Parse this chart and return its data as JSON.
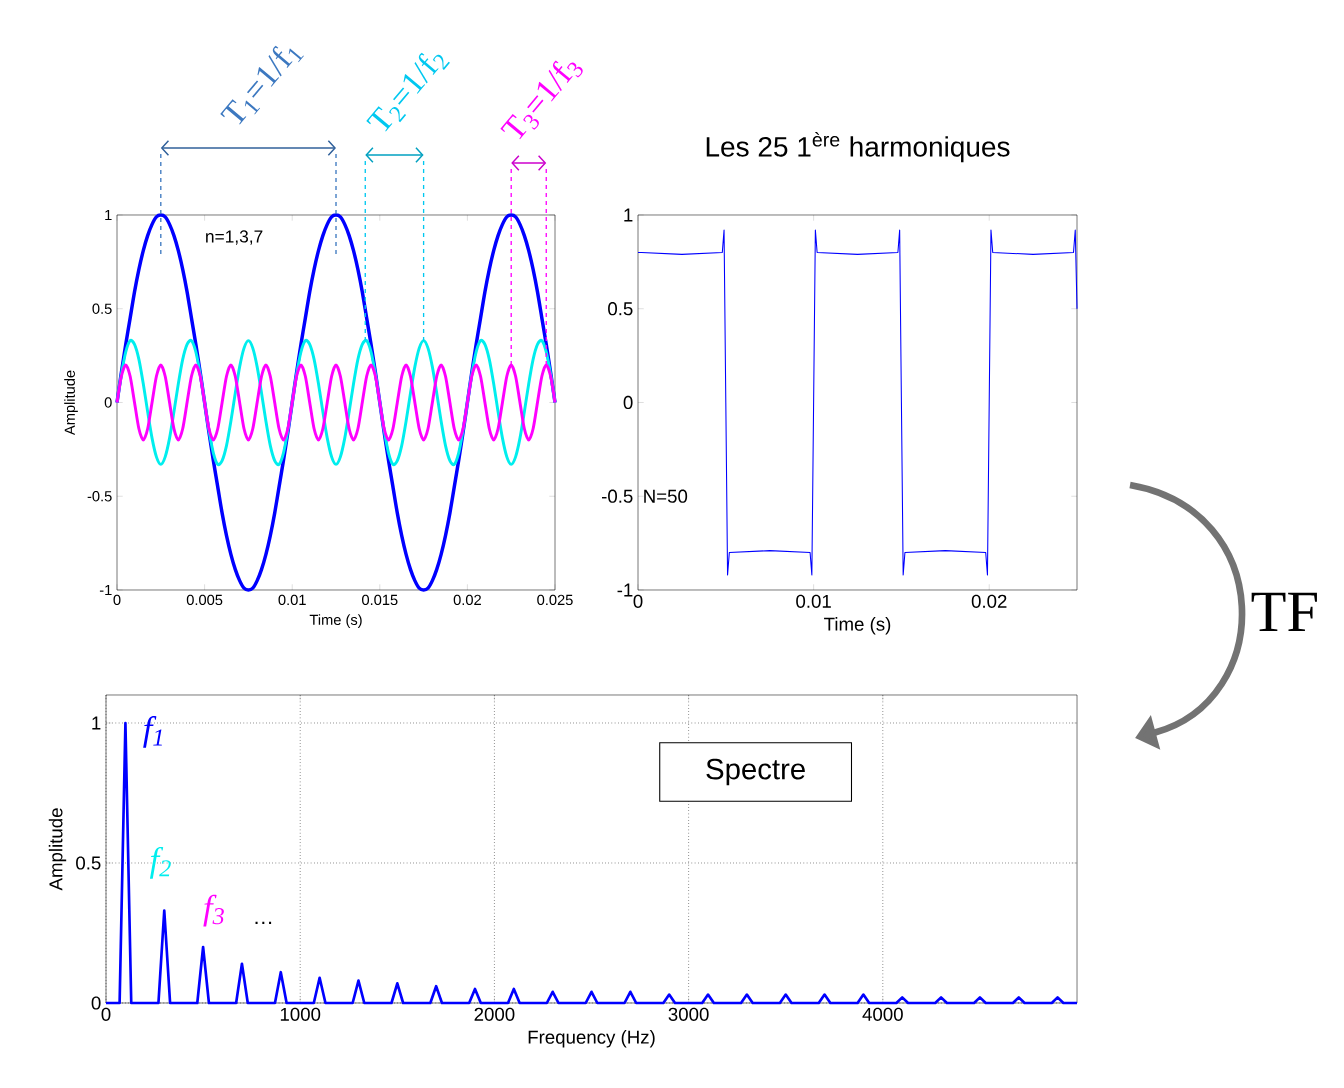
{
  "chart_data": [
    {
      "type": "line",
      "xlabel": "Time (s)",
      "ylabel": "Amplitude",
      "x": [
        0,
        0.00025,
        0.0005,
        0.00075,
        0.001,
        0.00125,
        0.0015,
        0.00175,
        0.002,
        0.00225,
        0.0025,
        0.00275,
        0.003,
        0.00325,
        0.0035,
        0.00375,
        0.004,
        0.00425,
        0.0045,
        0.00475,
        0.005,
        0.00525,
        0.0055,
        0.00575,
        0.006,
        0.00625,
        0.0065,
        0.00675,
        0.007,
        0.00725,
        0.0075,
        0.00775,
        0.008,
        0.00825,
        0.0085,
        0.00875,
        0.009,
        0.00925,
        0.0095,
        0.00975,
        0.01,
        0.01025,
        0.0105,
        0.01075,
        0.011,
        0.01125,
        0.0115,
        0.01175,
        0.012,
        0.01225,
        0.0125,
        0.01275,
        0.013,
        0.01325,
        0.0135,
        0.01375,
        0.014,
        0.01425,
        0.0145,
        0.01475,
        0.015,
        0.01525,
        0.0155,
        0.01575,
        0.016,
        0.01625,
        0.0165,
        0.01675,
        0.017,
        0.01725,
        0.0175,
        0.01775,
        0.018,
        0.01825,
        0.0185,
        0.01875,
        0.019,
        0.01925,
        0.0195,
        0.01975,
        0.02,
        0.02025,
        0.0205,
        0.02075,
        0.021,
        0.02125,
        0.0215,
        0.02175,
        0.022,
        0.02225,
        0.0225,
        0.02275,
        0.023,
        0.02325,
        0.0235,
        0.02375,
        0.024,
        0.02425,
        0.0245,
        0.02475,
        0.025
      ],
      "series": [
        {
          "color": "#0000ff",
          "values": [
            0,
            0.16,
            0.31,
            0.45,
            0.59,
            0.71,
            0.81,
            0.89,
            0.95,
            0.99,
            1,
            0.99,
            0.95,
            0.89,
            0.81,
            0.71,
            0.59,
            0.45,
            0.31,
            0.16,
            0,
            -0.16,
            -0.31,
            -0.45,
            -0.59,
            -0.71,
            -0.81,
            -0.89,
            -0.95,
            -0.99,
            -1,
            -0.99,
            -0.95,
            -0.89,
            -0.81,
            -0.71,
            -0.59,
            -0.45,
            -0.31,
            -0.16,
            0,
            0.16,
            0.31,
            0.45,
            0.59,
            0.71,
            0.81,
            0.89,
            0.95,
            0.99,
            1,
            0.99,
            0.95,
            0.89,
            0.81,
            0.71,
            0.59,
            0.45,
            0.31,
            0.16,
            0,
            -0.16,
            -0.31,
            -0.45,
            -0.59,
            -0.71,
            -0.81,
            -0.89,
            -0.95,
            -0.99,
            -1,
            -0.99,
            -0.95,
            -0.89,
            -0.81,
            -0.71,
            -0.59,
            -0.45,
            -0.31,
            -0.16,
            0,
            0.16,
            0.31,
            0.45,
            0.59,
            0.71,
            0.81,
            0.89,
            0.95,
            0.99,
            1,
            0.99,
            0.95,
            0.89,
            0.81,
            0.71,
            0.59,
            0.45,
            0.31,
            0.16,
            0
          ]
        },
        {
          "color": "#00eeee",
          "values": [
            0,
            0.15,
            0.27,
            0.33,
            0.31,
            0.23,
            0.1,
            -0.05,
            -0.19,
            -0.29,
            -0.33,
            -0.29,
            -0.19,
            -0.05,
            0.1,
            0.23,
            0.31,
            0.33,
            0.27,
            0.15,
            0,
            -0.15,
            -0.27,
            -0.33,
            -0.31,
            -0.23,
            -0.1,
            0.05,
            0.19,
            0.29,
            0.33,
            0.29,
            0.19,
            0.05,
            -0.1,
            -0.23,
            -0.31,
            -0.33,
            -0.27,
            -0.15,
            0,
            0.15,
            0.27,
            0.33,
            0.31,
            0.23,
            0.1,
            -0.05,
            -0.19,
            -0.29,
            -0.33,
            -0.29,
            -0.19,
            -0.05,
            0.1,
            0.23,
            0.31,
            0.33,
            0.27,
            0.15,
            0,
            -0.15,
            -0.27,
            -0.33,
            -0.31,
            -0.23,
            -0.1,
            0.05,
            0.19,
            0.29,
            0.33,
            0.29,
            0.19,
            0.05,
            -0.1,
            -0.23,
            -0.31,
            -0.33,
            -0.27,
            -0.15,
            0,
            0.15,
            0.27,
            0.33,
            0.31,
            0.23,
            0.1,
            -0.05,
            -0.19,
            -0.29,
            -0.33,
            -0.29,
            -0.19,
            -0.05,
            0.1,
            0.23,
            0.31,
            0.33,
            0.27,
            0.15,
            0
          ]
        },
        {
          "color": "#ff00ff",
          "values": [
            0,
            0.14,
            0.2,
            0.14,
            0,
            -0.14,
            -0.2,
            -0.14,
            0,
            0.14,
            0.2,
            0.14,
            0,
            -0.14,
            -0.2,
            -0.14,
            0,
            0.14,
            0.2,
            0.14,
            0,
            -0.14,
            -0.2,
            -0.14,
            0,
            0.14,
            0.2,
            0.14,
            0,
            -0.14,
            -0.2,
            -0.14,
            0,
            0.14,
            0.2,
            0.14,
            0,
            -0.14,
            -0.2,
            -0.14,
            0,
            0.14,
            0.2,
            0.14,
            0,
            -0.14,
            -0.2,
            -0.14,
            0,
            0.14,
            0.2,
            0.14,
            0,
            -0.14,
            -0.2,
            -0.14,
            0,
            0.14,
            0.2,
            0.14,
            0,
            -0.14,
            -0.2,
            -0.14,
            0,
            0.14,
            0.2,
            0.14,
            0,
            -0.14,
            -0.2,
            -0.14,
            0,
            0.14,
            0.2,
            0.14,
            0,
            -0.14,
            -0.2,
            -0.14,
            0,
            0.14,
            0.2,
            0.14,
            0,
            -0.14,
            -0.2,
            -0.14,
            0,
            0.14,
            0.2,
            0.14,
            0,
            -0.14,
            -0.2,
            -0.14,
            0,
            0.14,
            0.2,
            0.14,
            0
          ]
        }
      ],
      "xlim": [
        0,
        0.025
      ],
      "ylim": [
        -1,
        1
      ],
      "xticks": [
        0,
        0.005,
        0.01,
        0.015,
        0.02,
        0.025
      ],
      "yticks": [
        -1,
        -0.5,
        0,
        0.5,
        1
      ],
      "ref_lines": [
        {
          "axis": "x",
          "value": 0.0025,
          "color": "#3c78c0",
          "line_style": "dashed"
        },
        {
          "axis": "x",
          "value": 0.0125,
          "color": "#3c78c0",
          "line_style": "dashed"
        },
        {
          "axis": "x",
          "value": 0.01417,
          "color": "#00c8f0",
          "line_style": "dashed"
        },
        {
          "axis": "x",
          "value": 0.0175,
          "color": "#00c8f0",
          "line_style": "dashed"
        },
        {
          "axis": "x",
          "value": 0.0225,
          "color": "#ff00ff",
          "line_style": "dashed"
        },
        {
          "axis": "x",
          "value": 0.0245,
          "color": "#ff00ff",
          "line_style": "dashed"
        }
      ],
      "annotations": [
        "n=1,3,7",
        "T$_{1}$=1/f$_{1}$",
        "T$_{2}$=1/f$_{2}$",
        "T$_{3}$=1/f$_{3}$"
      ]
    },
    {
      "type": "line",
      "title": "Les 25 1$^{ère}$ harmoniques",
      "xlabel": "Time (s)",
      "x": [
        0,
        0.0002,
        0.0025,
        0.0048,
        0.0049,
        0.005,
        0.0051,
        0.0052,
        0.0075,
        0.0098,
        0.0099,
        0.01,
        0.0101,
        0.0102,
        0.0125,
        0.0148,
        0.0149,
        0.015,
        0.0151,
        0.0152,
        0.0175,
        0.0198,
        0.0199,
        0.02,
        0.0201,
        0.0202,
        0.0225,
        0.0248,
        0.0249,
        0.025
      ],
      "series": [
        {
          "color": "#0000ff",
          "values": [
            0.8,
            0.8,
            0.79,
            0.8,
            0.92,
            0,
            -0.92,
            -0.8,
            -0.79,
            -0.8,
            -0.92,
            0,
            0.92,
            0.8,
            0.79,
            0.8,
            0.92,
            0,
            -0.92,
            -0.8,
            -0.79,
            -0.8,
            -0.92,
            0,
            0.92,
            0.8,
            0.79,
            0.8,
            0.92,
            0.5
          ]
        }
      ],
      "xlim": [
        0,
        0.025
      ],
      "ylim": [
        -1,
        1
      ],
      "xticks": [
        0,
        0.01,
        0.02
      ],
      "yticks": [
        -1,
        -0.5,
        0,
        0.5,
        1
      ],
      "annotations": [
        "N=50"
      ]
    },
    {
      "type": "line",
      "xlabel": "Frequency (Hz)",
      "ylabel": "Amplitude",
      "x": [
        0,
        70,
        100,
        130,
        270,
        300,
        330,
        470,
        500,
        530,
        670,
        700,
        730,
        870,
        900,
        930,
        1070,
        1100,
        1130,
        1270,
        1300,
        1330,
        1470,
        1500,
        1530,
        1670,
        1700,
        1730,
        1870,
        1900,
        1930,
        2070,
        2100,
        2130,
        2270,
        2300,
        2330,
        2470,
        2500,
        2530,
        2670,
        2700,
        2730,
        2870,
        2900,
        2930,
        3070,
        3100,
        3130,
        3270,
        3300,
        3330,
        3470,
        3500,
        3530,
        3670,
        3700,
        3730,
        3870,
        3900,
        3930,
        4070,
        4100,
        4130,
        4270,
        4300,
        4330,
        4470,
        4500,
        4530,
        4670,
        4700,
        4730,
        4870,
        4900,
        4930,
        5000
      ],
      "series": [
        {
          "color": "#0000ff",
          "values": [
            0,
            0,
            1,
            0,
            0,
            0.33,
            0,
            0,
            0.2,
            0,
            0,
            0.14,
            0,
            0,
            0.11,
            0,
            0,
            0.09,
            0,
            0,
            0.08,
            0,
            0,
            0.07,
            0,
            0,
            0.06,
            0,
            0,
            0.05,
            0,
            0,
            0.05,
            0,
            0,
            0.04,
            0,
            0,
            0.04,
            0,
            0,
            0.04,
            0,
            0,
            0.03,
            0,
            0,
            0.03,
            0,
            0,
            0.03,
            0,
            0,
            0.03,
            0,
            0,
            0.03,
            0,
            0,
            0.03,
            0,
            0,
            0.02,
            0,
            0,
            0.02,
            0,
            0,
            0.02,
            0,
            0,
            0.02,
            0,
            0,
            0.02,
            0,
            0
          ]
        }
      ],
      "xlim": [
        0,
        5000
      ],
      "ylim": [
        0,
        1.1
      ],
      "xticks": [
        0,
        1000,
        2000,
        3000,
        4000
      ],
      "yticks": [
        0,
        0.5,
        1
      ],
      "grid": true,
      "annotations": [
        "f$_{1}$",
        "f$_{2}$",
        "f$_{3}$",
        "…",
        "Spectre",
        "TF"
      ]
    }
  ]
}
